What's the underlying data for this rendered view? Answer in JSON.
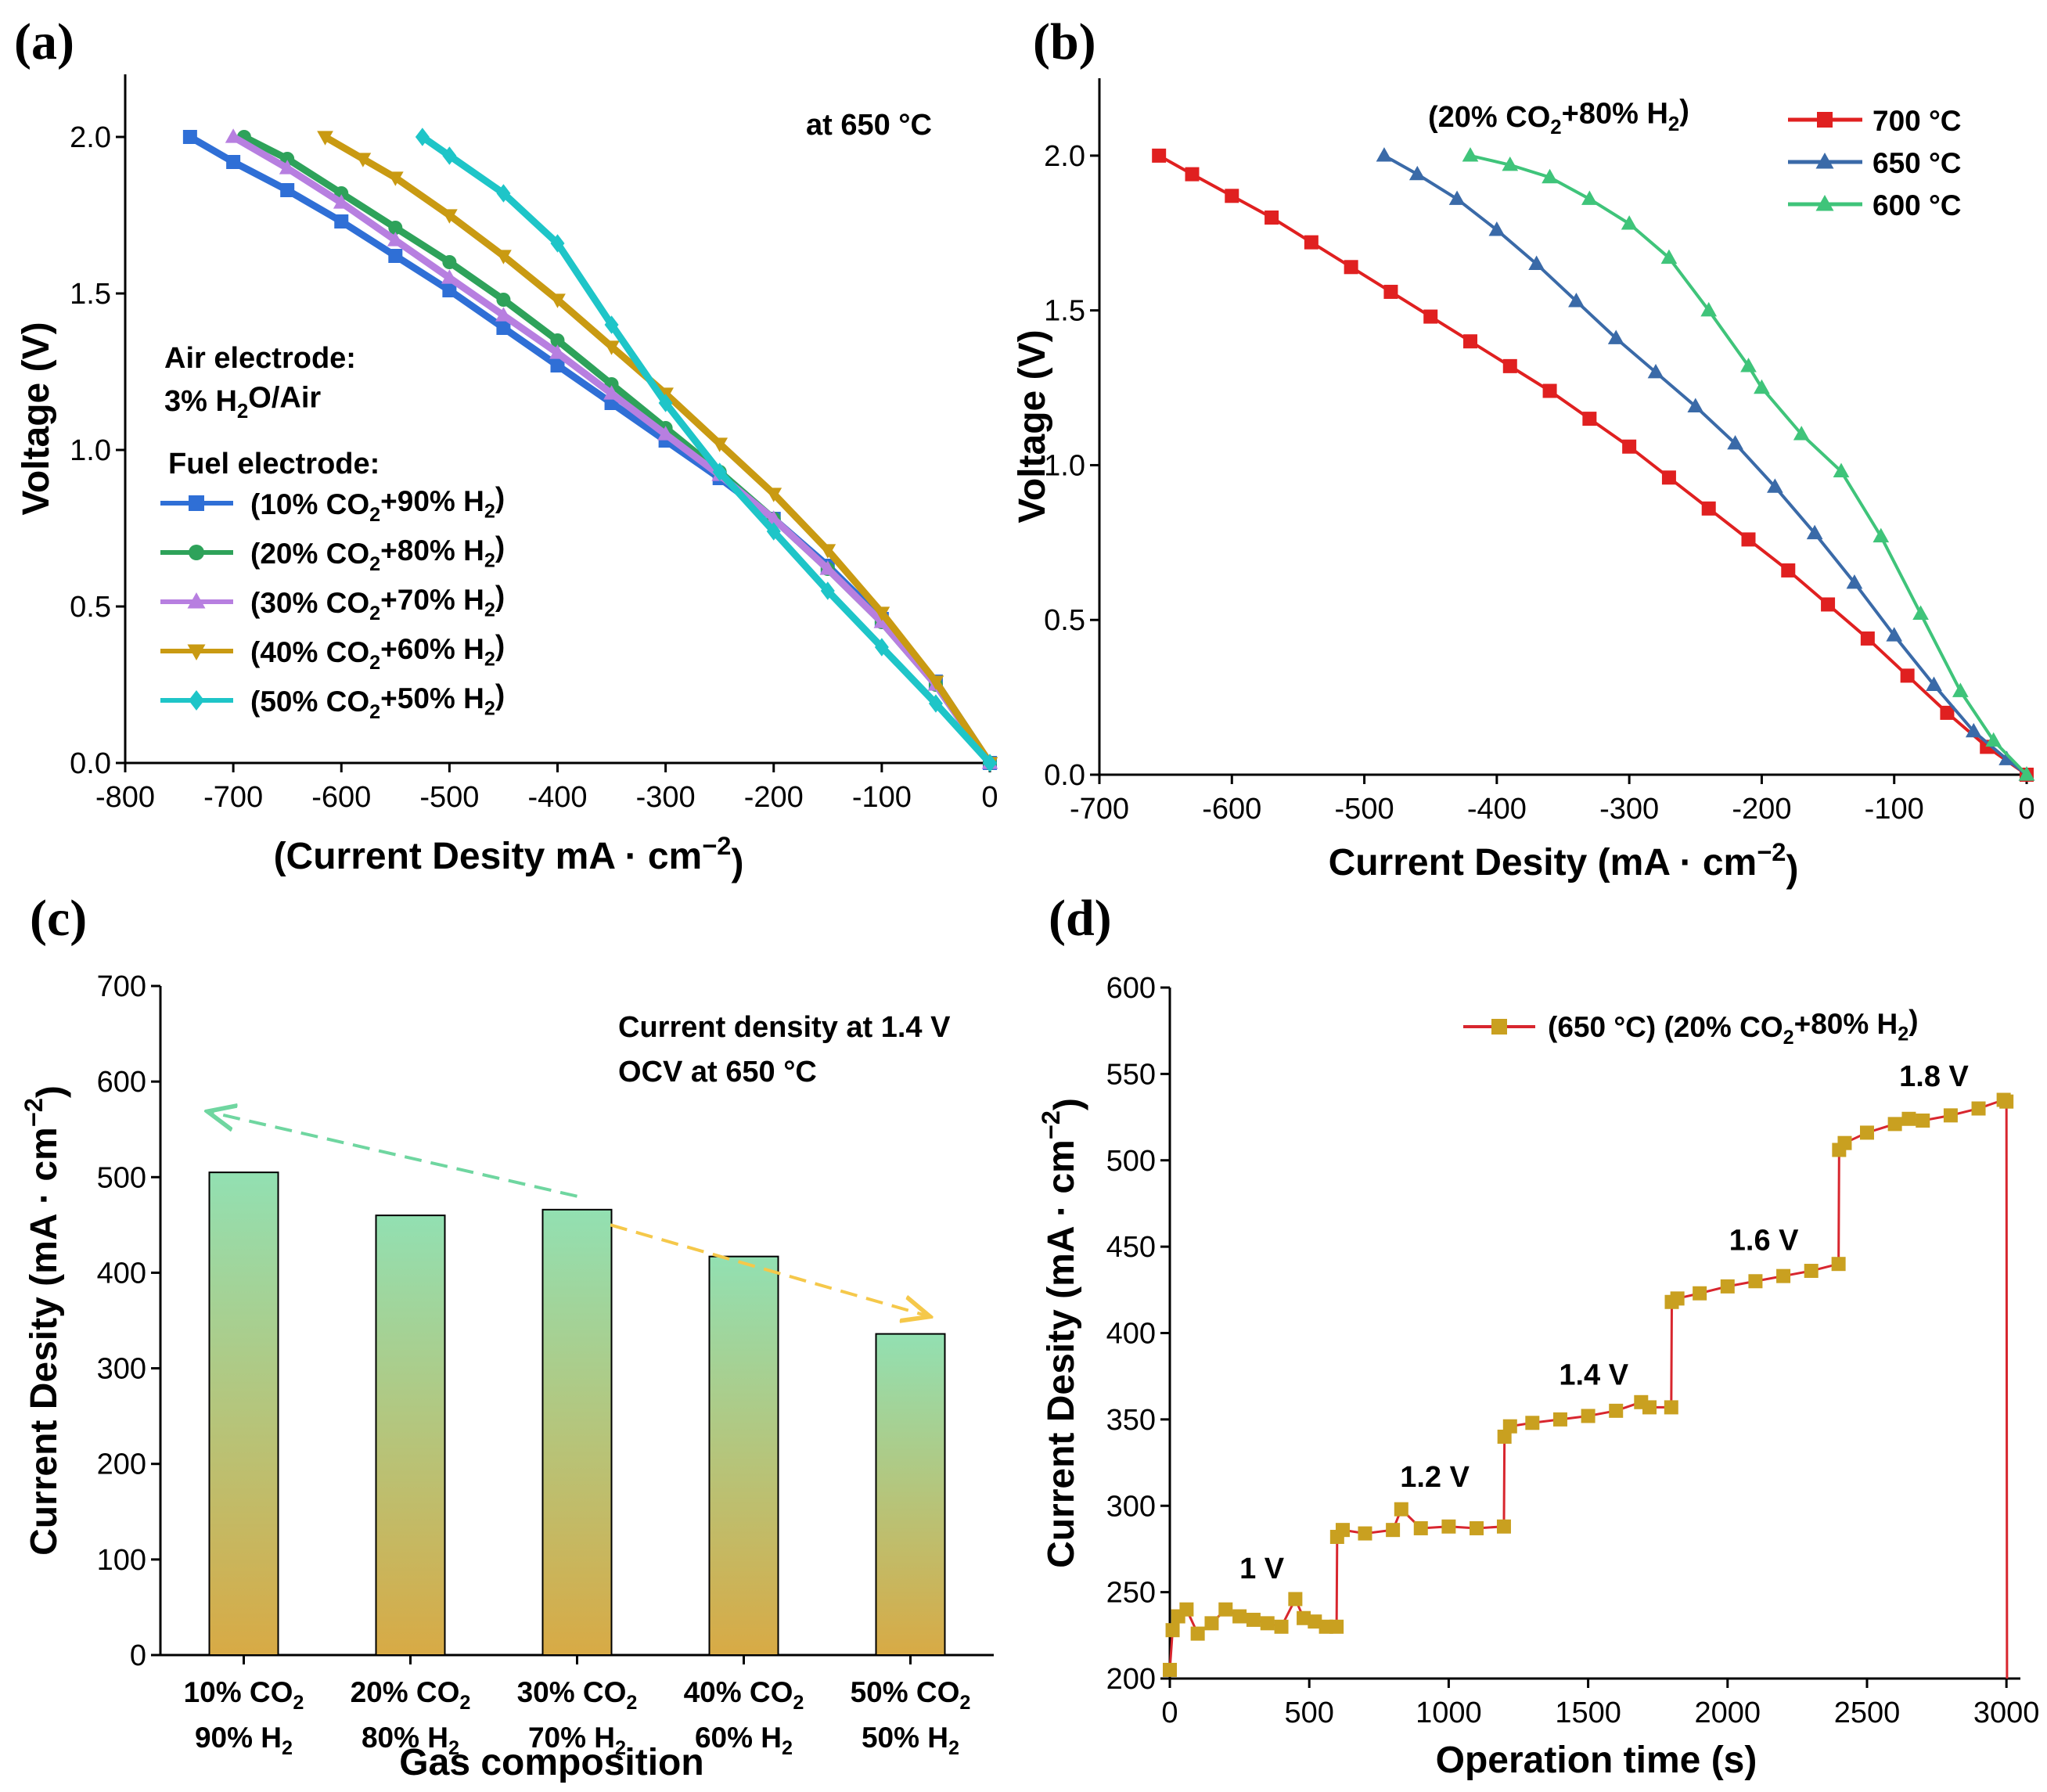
{
  "chart_data": [
    {
      "panel": "(a)",
      "type": "line",
      "xlabel": "(Current Desity mA · cm",
      "xlabel_sup": "−2",
      "xlabel_close": ")",
      "ylabel": "Voltage (V)",
      "xlim": [
        -800,
        0
      ],
      "ylim": [
        0,
        2.2
      ],
      "xticks": [
        -800,
        -700,
        -600,
        -500,
        -400,
        -300,
        -200,
        -100,
        0
      ],
      "xtick_labels": [
        "-800",
        "-700",
        "-600",
        "-500",
        "-400",
        "-300",
        "-200",
        "-100",
        "0"
      ],
      "yticks": [
        0,
        0.5,
        1.0,
        1.5,
        2.0
      ],
      "ytick_labels": [
        "0.0",
        "0.5",
        "1.0",
        "1.5",
        "2.0"
      ],
      "annotation_temp": "at 650 °C",
      "air_title": "Air electrode:",
      "air_gas": "3% H",
      "air_sub": "2",
      "air_gas_rest": "O/Air",
      "fuel_title": "Fuel electrode:",
      "series": [
        {
          "name": "(10% CO2+90% H2)",
          "name_parts": [
            "(10% CO",
            "2",
            "+90% H",
            "2",
            ")"
          ],
          "color": "#2f6fd6",
          "marker": "square",
          "x": [
            -740,
            -700,
            -650,
            -600,
            -550,
            -500,
            -450,
            -400,
            -350,
            -300,
            -250,
            -200,
            -150,
            -100,
            -50,
            0
          ],
          "y": [
            2.0,
            1.92,
            1.83,
            1.73,
            1.62,
            1.51,
            1.39,
            1.27,
            1.15,
            1.03,
            0.91,
            0.78,
            0.63,
            0.46,
            0.26,
            0.0
          ]
        },
        {
          "name": "(20% CO2+80% H2)",
          "name_parts": [
            "(20% CO",
            "2",
            "+80% H",
            "2",
            ")"
          ],
          "color": "#2ea25a",
          "marker": "circle",
          "x": [
            -690,
            -650,
            -600,
            -550,
            -500,
            -450,
            -400,
            -350,
            -300,
            -250,
            -200,
            -150,
            -100,
            -50,
            0
          ],
          "y": [
            2.0,
            1.93,
            1.82,
            1.71,
            1.6,
            1.48,
            1.35,
            1.21,
            1.07,
            0.93,
            0.78,
            0.62,
            0.45,
            0.25,
            0.0
          ]
        },
        {
          "name": "(30% CO2+70% H2)",
          "name_parts": [
            "(30% CO",
            "2",
            "+70% H",
            "2",
            ")"
          ],
          "color": "#b77fe0",
          "marker": "triangle-up",
          "x": [
            -700,
            -650,
            -600,
            -550,
            -500,
            -450,
            -400,
            -350,
            -300,
            -250,
            -200,
            -150,
            -100,
            -50,
            0
          ],
          "y": [
            2.0,
            1.9,
            1.79,
            1.67,
            1.55,
            1.43,
            1.31,
            1.18,
            1.05,
            0.92,
            0.78,
            0.62,
            0.45,
            0.25,
            0.0
          ]
        },
        {
          "name": "(40% CO2+60% H2)",
          "name_parts": [
            "(40% CO",
            "2",
            "+60% H",
            "2",
            ")"
          ],
          "color": "#c99a12",
          "marker": "triangle-down",
          "x": [
            -615,
            -580,
            -550,
            -500,
            -450,
            -400,
            -350,
            -300,
            -250,
            -200,
            -150,
            -100,
            -50,
            0
          ],
          "y": [
            2.0,
            1.93,
            1.87,
            1.75,
            1.62,
            1.48,
            1.33,
            1.18,
            1.02,
            0.86,
            0.68,
            0.48,
            0.26,
            0.0
          ]
        },
        {
          "name": "(50% CO2+50% H2)",
          "name_parts": [
            "(50% CO",
            "2",
            "+50% H",
            "2",
            ")"
          ],
          "color": "#1ec5c8",
          "marker": "diamond",
          "x": [
            -525,
            -500,
            -450,
            -400,
            -350,
            -300,
            -250,
            -200,
            -150,
            -100,
            -50,
            0
          ],
          "y": [
            2.0,
            1.94,
            1.82,
            1.66,
            1.4,
            1.15,
            0.93,
            0.74,
            0.55,
            0.37,
            0.19,
            0.0
          ]
        }
      ]
    },
    {
      "panel": "(b)",
      "type": "line",
      "xlabel": "Current Desity (mA · cm",
      "xlabel_sup": "−2",
      "xlabel_close": ")",
      "ylabel": "Voltage (V)",
      "xlim": [
        -700,
        0
      ],
      "ylim": [
        0,
        2.25
      ],
      "xticks": [
        -700,
        -600,
        -500,
        -400,
        -300,
        -200,
        -100,
        0
      ],
      "xtick_labels": [
        "-700",
        "-600",
        "-500",
        "-400",
        "-300",
        "-200",
        "-100",
        "0"
      ],
      "yticks": [
        0,
        0.5,
        1.0,
        1.5,
        2.0
      ],
      "ytick_labels": [
        "0.0",
        "0.5",
        "1.0",
        "1.5",
        "2.0"
      ],
      "annotation_parts": [
        "(20% CO",
        "2",
        "+80% H",
        "2",
        ")"
      ],
      "series": [
        {
          "name": "700 °C",
          "color": "#e02020",
          "marker": "square",
          "x": [
            -655,
            -630,
            -600,
            -570,
            -540,
            -510,
            -480,
            -450,
            -420,
            -390,
            -360,
            -330,
            -300,
            -270,
            -240,
            -210,
            -180,
            -150,
            -120,
            -90,
            -60,
            -30,
            0
          ],
          "y": [
            2.0,
            1.94,
            1.87,
            1.8,
            1.72,
            1.64,
            1.56,
            1.48,
            1.4,
            1.32,
            1.24,
            1.15,
            1.06,
            0.96,
            0.86,
            0.76,
            0.66,
            0.55,
            0.44,
            0.32,
            0.2,
            0.09,
            0.0
          ]
        },
        {
          "name": "650 °C",
          "color": "#3a6aa8",
          "marker": "triangle-up",
          "x": [
            -485,
            -460,
            -430,
            -400,
            -370,
            -340,
            -310,
            -280,
            -250,
            -220,
            -190,
            -160,
            -130,
            -100,
            -70,
            -40,
            -15,
            0
          ],
          "y": [
            2.0,
            1.94,
            1.86,
            1.76,
            1.65,
            1.53,
            1.41,
            1.3,
            1.19,
            1.07,
            0.93,
            0.78,
            0.62,
            0.45,
            0.29,
            0.14,
            0.05,
            0.0
          ]
        },
        {
          "name": "600 °C",
          "color": "#3fc47a",
          "marker": "triangle-up",
          "x": [
            -420,
            -390,
            -360,
            -330,
            -300,
            -270,
            -240,
            -210,
            -200,
            -170,
            -140,
            -110,
            -80,
            -50,
            -25,
            0
          ],
          "y": [
            2.0,
            1.97,
            1.93,
            1.86,
            1.78,
            1.67,
            1.5,
            1.32,
            1.25,
            1.1,
            0.98,
            0.77,
            0.52,
            0.27,
            0.11,
            0.0
          ]
        }
      ]
    },
    {
      "panel": "(c)",
      "type": "bar",
      "xlabel": "Gas composition",
      "ylabel": "Current Desity (mA · cm",
      "ylabel_sup": "−2",
      "ylabel_close": ")",
      "ylim": [
        0,
        700
      ],
      "yticks": [
        0,
        100,
        200,
        300,
        400,
        500,
        600,
        700
      ],
      "ytick_labels": [
        "0",
        "100",
        "200",
        "300",
        "400",
        "500",
        "600",
        "700"
      ],
      "annotation_line1": "Current density at 1.4 V",
      "annotation_line2": "OCV at 650 °C",
      "categories": [
        {
          "line1": [
            "10% CO",
            "2"
          ],
          "line2": [
            "90% H",
            "2"
          ]
        },
        {
          "line1": [
            "20% CO",
            "2"
          ],
          "line2": [
            "80% H",
            "2"
          ]
        },
        {
          "line1": [
            "30% CO",
            "2"
          ],
          "line2": [
            "70% H",
            "2"
          ]
        },
        {
          "line1": [
            "40% CO",
            "2"
          ],
          "line2": [
            "60% H",
            "2"
          ]
        },
        {
          "line1": [
            "50% CO",
            "2"
          ],
          "line2": [
            "50% H",
            "2"
          ]
        }
      ],
      "values": [
        505,
        460,
        466,
        417,
        336
      ],
      "bar_gradient": [
        "#92e0b2",
        "#d8aa45"
      ],
      "trend_arrows": [
        {
          "from_category": 2,
          "from_value": 480,
          "to_category": -0.2,
          "to_value": 568,
          "color": "#6fd6a0"
        },
        {
          "from_category": 2.2,
          "from_value": 450,
          "to_category": 4.1,
          "to_value": 355,
          "color": "#f5c84a"
        }
      ]
    },
    {
      "panel": "(d)",
      "type": "line",
      "xlabel": "Operation time (s)",
      "ylabel": "Current Desity (mA · cm",
      "ylabel_sup": "−2",
      "ylabel_close": ")",
      "xlim": [
        0,
        3050
      ],
      "ylim": [
        200,
        600
      ],
      "xticks": [
        0,
        500,
        1000,
        1500,
        2000,
        2500,
        3000
      ],
      "xtick_labels": [
        "0",
        "500",
        "1000",
        "1500",
        "2000",
        "2500",
        "3000"
      ],
      "yticks": [
        200,
        250,
        300,
        350,
        400,
        450,
        500,
        550,
        600
      ],
      "ytick_labels": [
        "200",
        "250",
        "300",
        "350",
        "400",
        "450",
        "500",
        "550",
        "600"
      ],
      "legend_parts": [
        "(650 °C) (20% CO",
        "2",
        "+80% H",
        "2",
        ")"
      ],
      "line_color": "#d8262e",
      "marker_color": "#c9a020",
      "step_labels": [
        {
          "text": "1 V",
          "x": 330,
          "y": 258
        },
        {
          "text": "1.2 V",
          "x": 950,
          "y": 311
        },
        {
          "text": "1.4 V",
          "x": 1520,
          "y": 370
        },
        {
          "text": "1.6 V",
          "x": 2130,
          "y": 448
        },
        {
          "text": "1.8 V",
          "x": 2740,
          "y": 543
        }
      ],
      "x": [
        0,
        10,
        30,
        60,
        100,
        150,
        200,
        250,
        300,
        350,
        400,
        450,
        480,
        520,
        560,
        598,
        600,
        620,
        700,
        800,
        830,
        900,
        1000,
        1100,
        1198,
        1200,
        1220,
        1300,
        1400,
        1500,
        1600,
        1690,
        1720,
        1798,
        1800,
        1820,
        1900,
        2000,
        2100,
        2200,
        2300,
        2398,
        2400,
        2420,
        2500,
        2600,
        2650,
        2700,
        2800,
        2900,
        2990,
        3000,
        3002
      ],
      "y": [
        205,
        228,
        236,
        240,
        226,
        232,
        240,
        236,
        234,
        232,
        230,
        246,
        235,
        233,
        230,
        230,
        282,
        286,
        284,
        286,
        298,
        287,
        288,
        287,
        288,
        340,
        346,
        348,
        350,
        352,
        355,
        360,
        357,
        357,
        418,
        420,
        423,
        427,
        430,
        433,
        436,
        440,
        506,
        510,
        516,
        521,
        524,
        523,
        526,
        530,
        535,
        534,
        200
      ]
    }
  ]
}
